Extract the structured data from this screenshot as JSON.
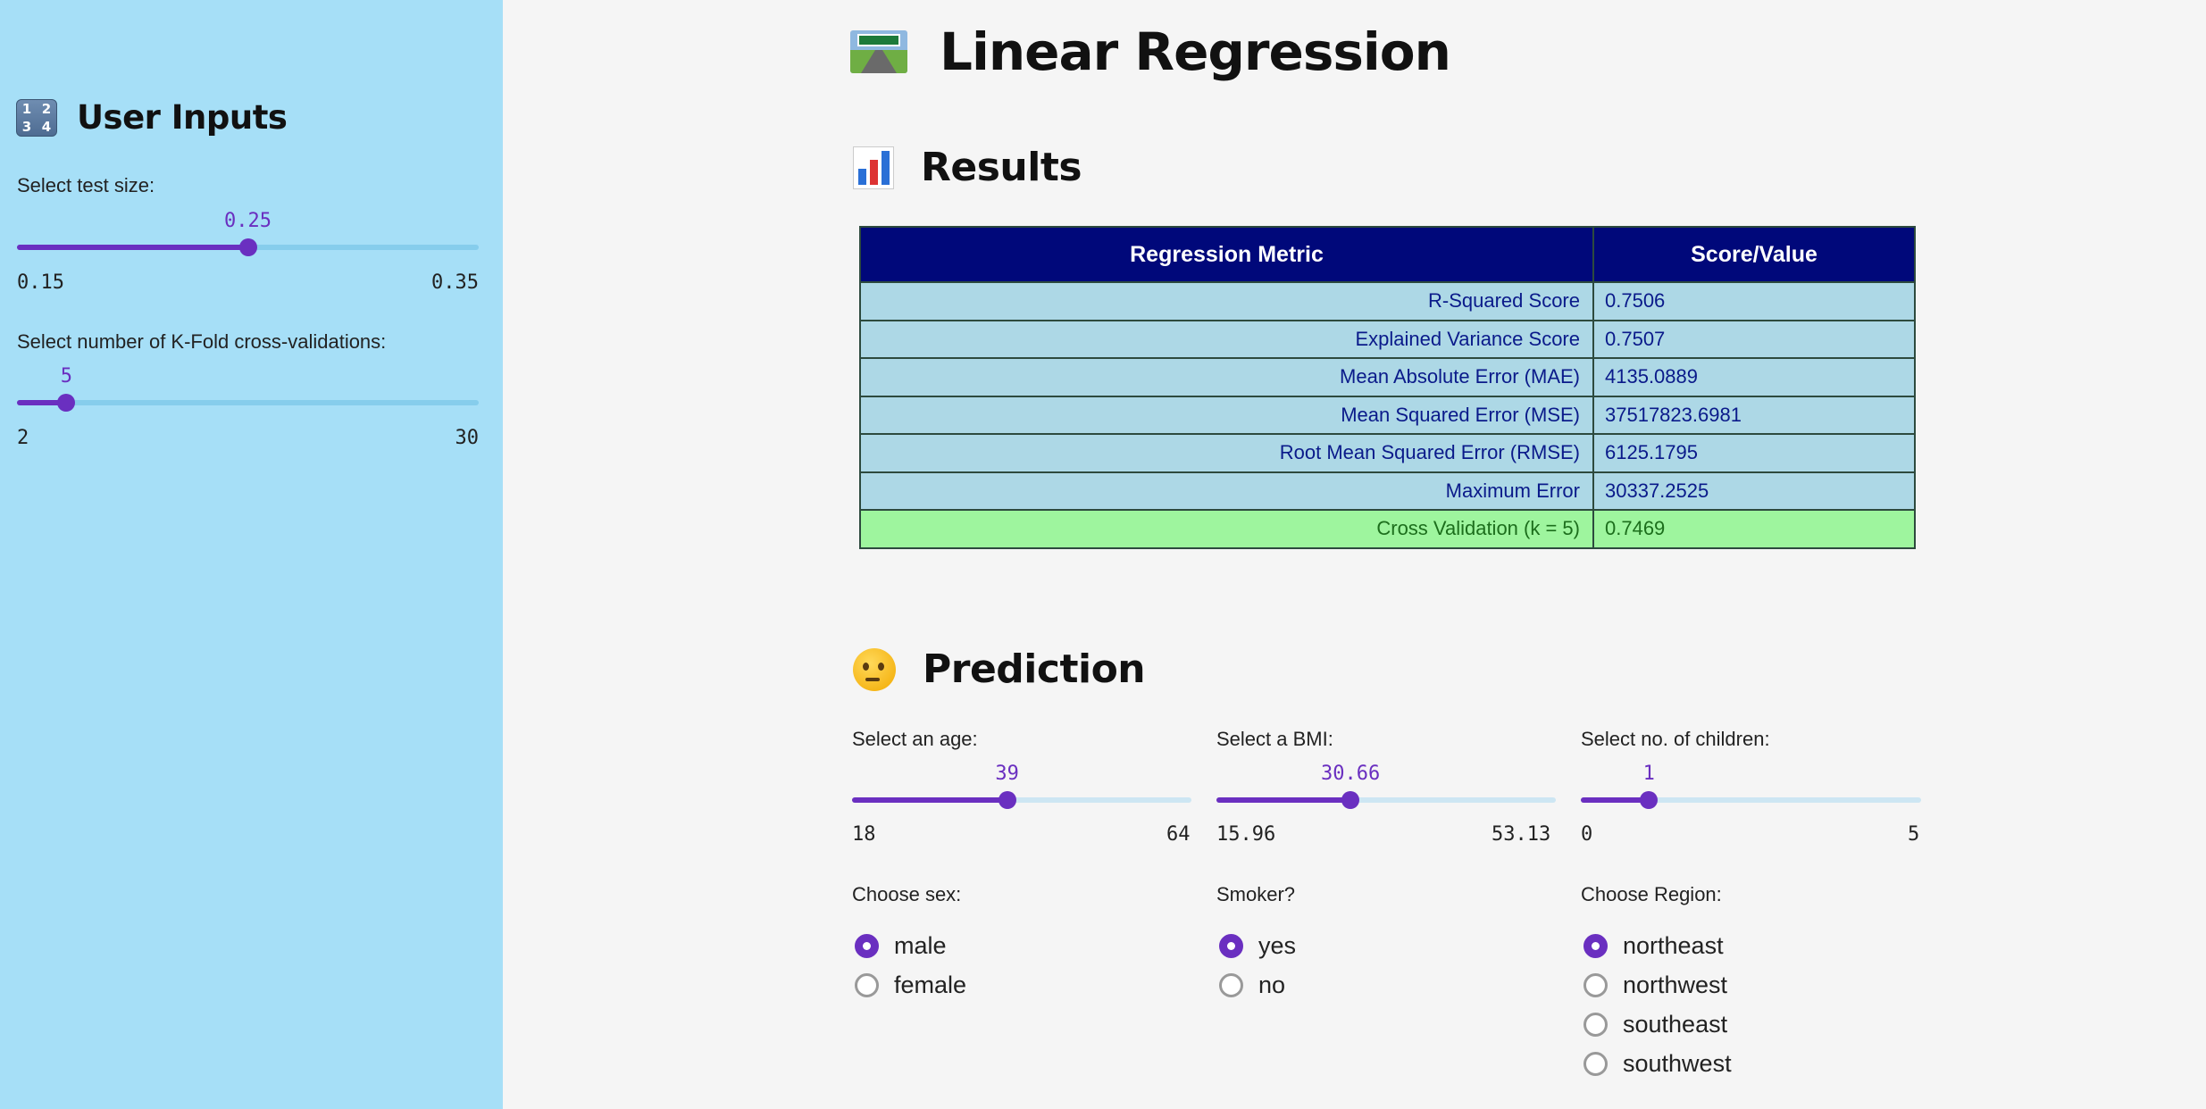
{
  "sidebar": {
    "title": "User Inputs",
    "icon": "input-numbers-icon",
    "icon_digits": [
      "1",
      "2",
      "3",
      "4"
    ],
    "test_size": {
      "label": "Select test size:",
      "value": "0.25",
      "min": "0.15",
      "max": "0.35",
      "fraction": 0.5
    },
    "kfold": {
      "label": "Select number of K-Fold cross-validations:",
      "value": "5",
      "min": "2",
      "max": "30",
      "fraction": 0.107
    }
  },
  "main": {
    "title": "Linear Regression",
    "title_icon": "motorway-icon",
    "results": {
      "title": "Results",
      "icon": "bar-chart-icon",
      "table": {
        "headers": [
          "Regression Metric",
          "Score/Value"
        ],
        "rows": [
          {
            "metric": "R-Squared Score",
            "value": "0.7506"
          },
          {
            "metric": "Explained Variance Score",
            "value": "0.7507"
          },
          {
            "metric": "Mean Absolute Error (MAE)",
            "value": "4135.0889"
          },
          {
            "metric": "Mean Squared Error (MSE)",
            "value": "37517823.6981"
          },
          {
            "metric": "Root Mean Squared Error (RMSE)",
            "value": "6125.1795"
          },
          {
            "metric": "Maximum Error",
            "value": "30337.2525"
          },
          {
            "metric": "Cross Validation (k = 5)",
            "value": "0.7469"
          }
        ]
      }
    },
    "prediction": {
      "title": "Prediction",
      "icon": "thinking-face-icon",
      "age": {
        "label": "Select an age:",
        "value": "39",
        "min": "18",
        "max": "64",
        "fraction": 0.457
      },
      "bmi": {
        "label": "Select a BMI:",
        "value": "30.66",
        "min": "15.96",
        "max": "53.13",
        "fraction": 0.395
      },
      "children": {
        "label": "Select no. of children:",
        "value": "1",
        "min": "0",
        "max": "5",
        "fraction": 0.2
      },
      "sex": {
        "label": "Choose sex:",
        "options": [
          "male",
          "female"
        ],
        "selected": 0
      },
      "smoker": {
        "label": "Smoker?",
        "options": [
          "yes",
          "no"
        ],
        "selected": 0
      },
      "region": {
        "label": "Choose Region:",
        "options": [
          "northeast",
          "northwest",
          "southeast",
          "southwest"
        ],
        "selected": 0
      }
    }
  },
  "colors": {
    "sidebar_bg": "#a6dff7",
    "accent": "#6a2fc0",
    "table_header": "#00087a",
    "table_row": "#add8e6",
    "table_highlight_row": "#9ef59e"
  }
}
